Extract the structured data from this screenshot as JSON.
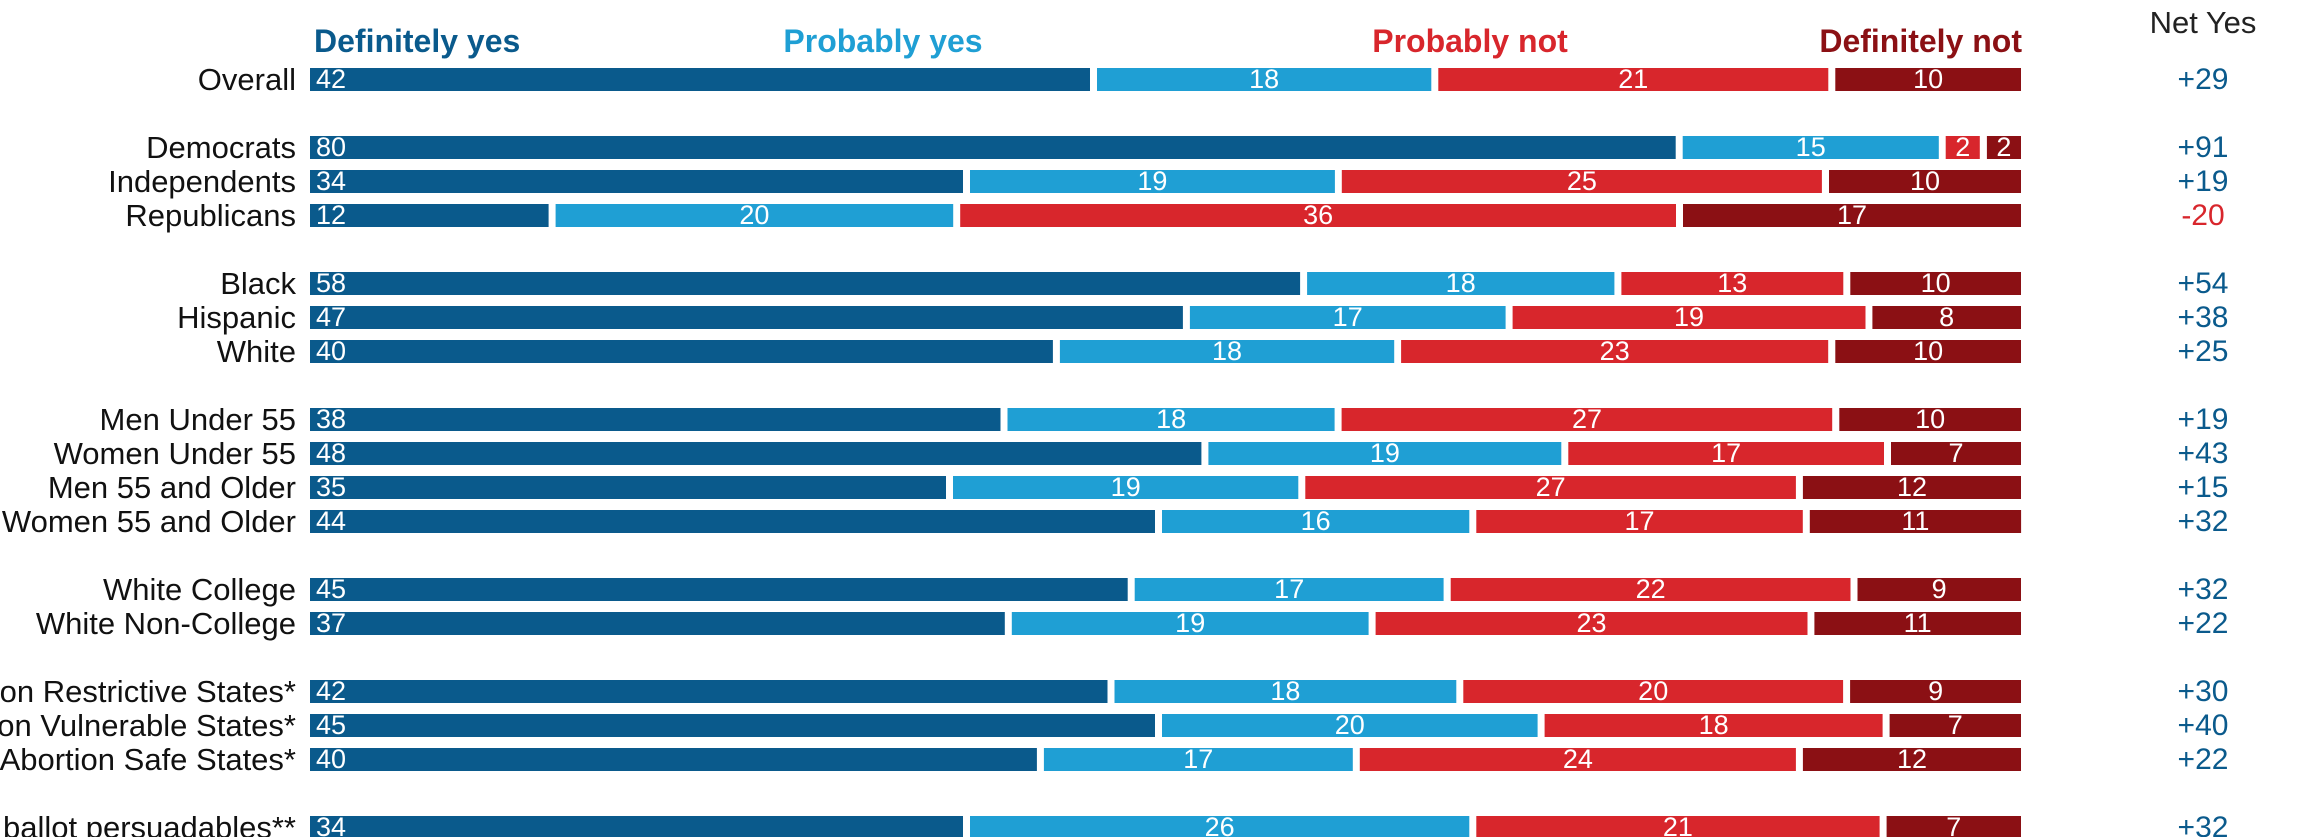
{
  "chart_data": {
    "type": "bar",
    "orientation": "horizontal",
    "stacked": true,
    "net_header": "Net Yes",
    "legend_placement": "top",
    "series": [
      {
        "name": "Definitely yes",
        "color": "#0a5a8c",
        "values": [
          42,
          80,
          34,
          12,
          58,
          47,
          40,
          38,
          48,
          35,
          44,
          45,
          37,
          42,
          45,
          40,
          34
        ]
      },
      {
        "name": "Probably yes",
        "color": "#1f9fd4",
        "values": [
          18,
          15,
          19,
          20,
          18,
          17,
          18,
          18,
          19,
          19,
          16,
          17,
          19,
          18,
          20,
          17,
          26
        ]
      },
      {
        "name": "Probably not",
        "color": "#d8262c",
        "values": [
          21,
          2,
          25,
          36,
          13,
          19,
          23,
          27,
          17,
          27,
          17,
          22,
          23,
          20,
          18,
          24,
          21
        ]
      },
      {
        "name": "Definitely not",
        "color": "#8b1014",
        "values": [
          10,
          2,
          10,
          17,
          10,
          8,
          10,
          10,
          7,
          12,
          11,
          9,
          11,
          9,
          7,
          12,
          7
        ]
      }
    ],
    "rows": [
      {
        "label": "Overall",
        "net": "+29",
        "net_color": "#0a5a8c",
        "group": 0
      },
      {
        "label": "Democrats",
        "net": "+91",
        "net_color": "#0a5a8c",
        "group": 1
      },
      {
        "label": "Independents",
        "net": "+19",
        "net_color": "#0a5a8c",
        "group": 1
      },
      {
        "label": "Republicans",
        "net": "-20",
        "net_color": "#d8262c",
        "group": 1
      },
      {
        "label": "Black",
        "net": "+54",
        "net_color": "#0a5a8c",
        "group": 2
      },
      {
        "label": "Hispanic",
        "net": "+38",
        "net_color": "#0a5a8c",
        "group": 2
      },
      {
        "label": "White",
        "net": "+25",
        "net_color": "#0a5a8c",
        "group": 2
      },
      {
        "label": "Men Under 55",
        "net": "+19",
        "net_color": "#0a5a8c",
        "group": 3
      },
      {
        "label": "Women Under 55",
        "net": "+43",
        "net_color": "#0a5a8c",
        "group": 3
      },
      {
        "label": "Men 55 and Older",
        "net": "+15",
        "net_color": "#0a5a8c",
        "group": 3
      },
      {
        "label": "Women 55 and Older",
        "net": "+32",
        "net_color": "#0a5a8c",
        "group": 3
      },
      {
        "label": "White College",
        "net": "+32",
        "net_color": "#0a5a8c",
        "group": 4
      },
      {
        "label": "White Non-College",
        "net": "+22",
        "net_color": "#0a5a8c",
        "group": 4
      },
      {
        "label": "Abortion Restrictive States*",
        "net": "+30",
        "net_color": "#0a5a8c",
        "group": 5
      },
      {
        "label": "Abortion Vulnerable States*",
        "net": "+40",
        "net_color": "#0a5a8c",
        "group": 5
      },
      {
        "label": "Abortion Safe States*",
        "net": "+22",
        "net_color": "#0a5a8c",
        "group": 5
      },
      {
        "label": "Generic ballot persuadables**",
        "net": "+32",
        "net_color": "#0a5a8c",
        "group": 6
      }
    ]
  }
}
